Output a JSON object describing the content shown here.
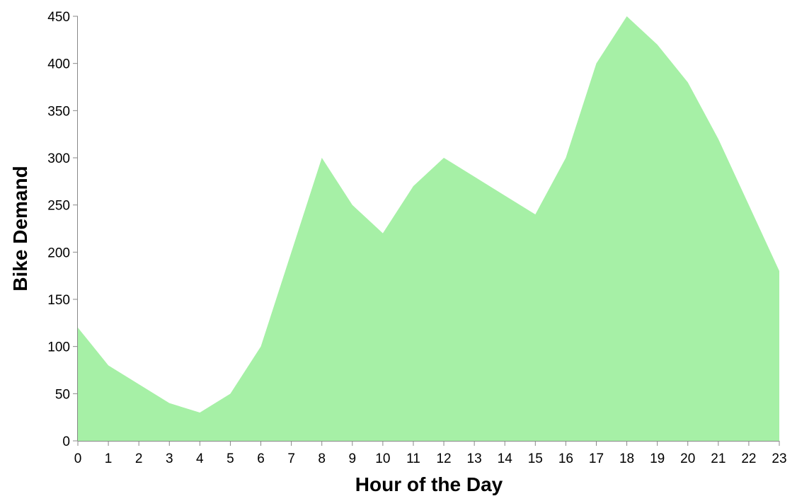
{
  "chart_data": {
    "type": "area",
    "xlabel": "Hour of the Day",
    "ylabel": "Bike Demand",
    "x": [
      0,
      1,
      2,
      3,
      4,
      5,
      6,
      7,
      8,
      9,
      10,
      11,
      12,
      13,
      14,
      15,
      16,
      17,
      18,
      19,
      20,
      21,
      22,
      23
    ],
    "values": [
      120,
      80,
      60,
      40,
      30,
      50,
      100,
      200,
      300,
      250,
      220,
      270,
      300,
      280,
      260,
      240,
      300,
      400,
      450,
      420,
      380,
      320,
      250,
      180
    ],
    "xlim": [
      0,
      23
    ],
    "ylim": [
      0,
      450
    ],
    "yticks": [
      0,
      50,
      100,
      150,
      200,
      250,
      300,
      350,
      400,
      450
    ],
    "grid": false,
    "legend": "none",
    "fill_color": "#a6f0a6",
    "axis_color": "#888888"
  }
}
